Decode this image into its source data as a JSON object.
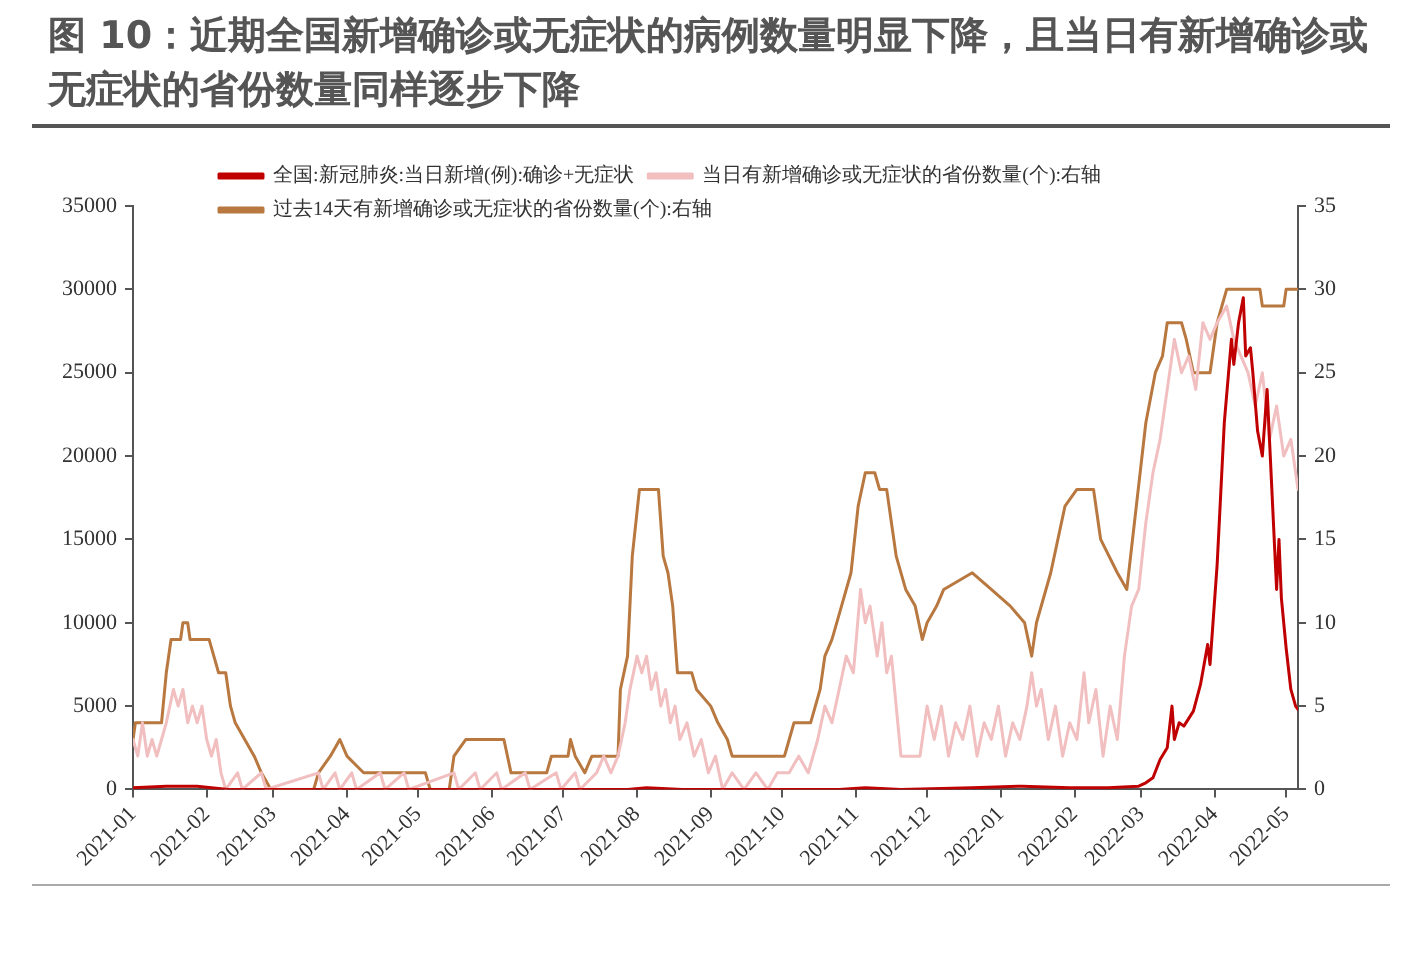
{
  "chart_data": {
    "type": "line",
    "title": "图 10：近期全国新增确诊或无症状的病例数量明显下降，且当日有新增确诊或无症状的省份数量同样逐步下降",
    "xlim": [
      "2021-01-01",
      "2022-05-06"
    ],
    "xticks": [
      "2021-01",
      "2021-02",
      "2021-03",
      "2021-04",
      "2021-05",
      "2021-06",
      "2021-07",
      "2021-08",
      "2021-09",
      "2021-10",
      "2021-11",
      "2021-12",
      "2022-01",
      "2022-02",
      "2022-03",
      "2022-04",
      "2022-05"
    ],
    "ylim": [
      0,
      35000
    ],
    "yticks": [
      0,
      5000,
      10000,
      15000,
      20000,
      25000,
      30000,
      35000
    ],
    "y2lim": [
      0,
      35
    ],
    "y2ticks": [
      0,
      5,
      10,
      15,
      20,
      25,
      30,
      35
    ],
    "grid": false,
    "legend": "top",
    "marker": "none",
    "series": [
      {
        "name": "全国:新冠肺炎:当日新增(例):确诊+无症状",
        "color": "#c00000",
        "x": [
          "2021-01-01",
          "2021-01-15",
          "2021-01-28",
          "2021-02-10",
          "2021-07-28",
          "2021-08-05",
          "2021-08-20",
          "2021-10-25",
          "2021-11-05",
          "2021-11-20",
          "2021-12-20",
          "2022-01-10",
          "2022-01-30",
          "2022-02-15",
          "2022-02-28",
          "2022-03-03",
          "2022-03-06",
          "2022-03-09",
          "2022-03-12",
          "2022-03-14",
          "2022-03-15",
          "2022-03-17",
          "2022-03-19",
          "2022-03-23",
          "2022-03-26",
          "2022-03-29",
          "2022-03-30",
          "2022-04-02",
          "2022-04-05",
          "2022-04-08",
          "2022-04-09",
          "2022-04-11",
          "2022-04-13",
          "2022-04-14",
          "2022-04-16",
          "2022-04-17",
          "2022-04-19",
          "2022-04-21",
          "2022-04-23",
          "2022-04-25",
          "2022-04-27",
          "2022-04-28",
          "2022-04-29",
          "2022-05-01",
          "2022-05-03",
          "2022-05-05",
          "2022-05-06"
        ],
        "values": [
          100,
          200,
          200,
          0,
          0,
          100,
          0,
          0,
          100,
          0,
          100,
          200,
          100,
          100,
          200,
          400,
          700,
          1800,
          2500,
          5000,
          3000,
          4000,
          3800,
          4700,
          6300,
          8700,
          7500,
          13500,
          22000,
          27000,
          25500,
          28000,
          29500,
          26000,
          26500,
          25000,
          21500,
          20000,
          24000,
          18000,
          12000,
          15000,
          11500,
          8500,
          6000,
          5000,
          4800
        ]
      },
      {
        "name": "当日有新增确诊或无症状的省份数量(个):右轴",
        "color": "#f2bfc0",
        "axis": "y2",
        "x": [
          "2021-01-01",
          "2021-01-03",
          "2021-01-05",
          "2021-01-07",
          "2021-01-09",
          "2021-01-11",
          "2021-01-13",
          "2021-01-15",
          "2021-01-18",
          "2021-01-20",
          "2021-01-22",
          "2021-01-24",
          "2021-01-26",
          "2021-01-28",
          "2021-01-30",
          "2021-02-01",
          "2021-02-03",
          "2021-02-05",
          "2021-02-07",
          "2021-02-09",
          "2021-02-14",
          "2021-02-16",
          "2021-02-24",
          "2021-02-26",
          "2021-03-20",
          "2021-03-22",
          "2021-03-27",
          "2021-03-29",
          "2021-04-03",
          "2021-04-05",
          "2021-04-15",
          "2021-04-17",
          "2021-04-25",
          "2021-04-27",
          "2021-05-16",
          "2021-05-18",
          "2021-05-25",
          "2021-05-27",
          "2021-06-03",
          "2021-06-05",
          "2021-06-15",
          "2021-06-17",
          "2021-06-28",
          "2021-06-30",
          "2021-07-06",
          "2021-07-08",
          "2021-07-15",
          "2021-07-18",
          "2021-07-21",
          "2021-07-24",
          "2021-07-27",
          "2021-07-29",
          "2021-08-01",
          "2021-08-03",
          "2021-08-05",
          "2021-08-07",
          "2021-08-09",
          "2021-08-11",
          "2021-08-13",
          "2021-08-15",
          "2021-08-17",
          "2021-08-19",
          "2021-08-22",
          "2021-08-25",
          "2021-08-28",
          "2021-08-31",
          "2021-09-03",
          "2021-09-06",
          "2021-09-10",
          "2021-09-15",
          "2021-09-20",
          "2021-09-25",
          "2021-09-29",
          "2021-10-04",
          "2021-10-08",
          "2021-10-12",
          "2021-10-16",
          "2021-10-19",
          "2021-10-22",
          "2021-10-25",
          "2021-10-28",
          "2021-10-31",
          "2021-11-03",
          "2021-11-05",
          "2021-11-07",
          "2021-11-10",
          "2021-11-12",
          "2021-11-14",
          "2021-11-16",
          "2021-11-18",
          "2021-11-20",
          "2021-11-24",
          "2021-11-28",
          "2021-12-01",
          "2021-12-04",
          "2021-12-07",
          "2021-12-10",
          "2021-12-13",
          "2021-12-16",
          "2021-12-19",
          "2021-12-22",
          "2021-12-25",
          "2021-12-28",
          "2021-12-31",
          "2022-01-03",
          "2022-01-06",
          "2022-01-09",
          "2022-01-12",
          "2022-01-14",
          "2022-01-16",
          "2022-01-18",
          "2022-01-21",
          "2022-01-24",
          "2022-01-27",
          "2022-01-30",
          "2022-02-02",
          "2022-02-05",
          "2022-02-07",
          "2022-02-10",
          "2022-02-13",
          "2022-02-16",
          "2022-02-19",
          "2022-02-22",
          "2022-02-25",
          "2022-02-28",
          "2022-03-03",
          "2022-03-06",
          "2022-03-09",
          "2022-03-12",
          "2022-03-15",
          "2022-03-18",
          "2022-03-21",
          "2022-03-24",
          "2022-03-27",
          "2022-03-30",
          "2022-04-02",
          "2022-04-06",
          "2022-04-09",
          "2022-04-12",
          "2022-04-15",
          "2022-04-18",
          "2022-04-21",
          "2022-04-24",
          "2022-04-27",
          "2022-04-30",
          "2022-05-03",
          "2022-05-06"
        ],
        "values": [
          3,
          2,
          4,
          2,
          3,
          2,
          3,
          4,
          6,
          5,
          6,
          4,
          5,
          4,
          5,
          3,
          2,
          3,
          1,
          0,
          1,
          0,
          1,
          0,
          1,
          0,
          1,
          0,
          1,
          0,
          1,
          0,
          1,
          0,
          1,
          0,
          1,
          0,
          1,
          0,
          1,
          0,
          1,
          0,
          1,
          0,
          1,
          2,
          1,
          2,
          4,
          6,
          8,
          7,
          8,
          6,
          7,
          5,
          6,
          4,
          5,
          3,
          4,
          2,
          3,
          1,
          2,
          0,
          1,
          0,
          1,
          0,
          1,
          1,
          2,
          1,
          3,
          5,
          4,
          6,
          8,
          7,
          12,
          10,
          11,
          8,
          10,
          7,
          8,
          5,
          2,
          2,
          2,
          5,
          3,
          5,
          2,
          4,
          3,
          5,
          2,
          4,
          3,
          5,
          2,
          4,
          3,
          5,
          7,
          5,
          6,
          3,
          5,
          2,
          4,
          3,
          7,
          4,
          6,
          2,
          5,
          3,
          8,
          11,
          12,
          16,
          19,
          21,
          24,
          27,
          25,
          26,
          24,
          28,
          27,
          28,
          29,
          27,
          26,
          25,
          23,
          25,
          21,
          23,
          20,
          21,
          18
        ]
      },
      {
        "name": "过去14天有新增确诊或无症状的省份数量(个):右轴",
        "color": "#b8783f",
        "axis": "y2",
        "x": [
          "2021-01-01",
          "2021-01-02",
          "2021-01-13",
          "2021-01-15",
          "2021-01-17",
          "2021-01-21",
          "2021-01-22",
          "2021-01-24",
          "2021-01-25",
          "2021-02-02",
          "2021-02-04",
          "2021-02-06",
          "2021-02-09",
          "2021-02-11",
          "2021-02-13",
          "2021-02-17",
          "2021-02-21",
          "2021-02-24",
          "2021-02-28",
          "2021-03-18",
          "2021-03-20",
          "2021-03-25",
          "2021-03-29",
          "2021-04-01",
          "2021-04-08",
          "2021-05-04",
          "2021-05-06",
          "2021-05-14",
          "2021-05-16",
          "2021-05-21",
          "2021-06-06",
          "2021-06-09",
          "2021-06-24",
          "2021-06-26",
          "2021-07-03",
          "2021-07-04",
          "2021-07-06",
          "2021-07-10",
          "2021-07-13",
          "2021-07-24",
          "2021-07-25",
          "2021-07-28",
          "2021-07-30",
          "2021-08-02",
          "2021-08-10",
          "2021-08-12",
          "2021-08-14",
          "2021-08-16",
          "2021-08-18",
          "2021-08-24",
          "2021-08-26",
          "2021-09-01",
          "2021-09-04",
          "2021-09-08",
          "2021-09-10",
          "2021-10-02",
          "2021-10-04",
          "2021-10-06",
          "2021-10-13",
          "2021-10-15",
          "2021-10-17",
          "2021-10-19",
          "2021-10-22",
          "2021-10-26",
          "2021-10-30",
          "2021-11-02",
          "2021-11-05",
          "2021-11-09",
          "2021-11-11",
          "2021-11-14",
          "2021-11-16",
          "2021-11-18",
          "2021-11-22",
          "2021-11-26",
          "2021-11-29",
          "2021-12-01",
          "2021-12-05",
          "2021-12-08",
          "2021-12-20",
          "2021-12-28",
          "2022-01-05",
          "2022-01-11",
          "2022-01-14",
          "2022-01-16",
          "2022-01-22",
          "2022-01-28",
          "2022-02-02",
          "2022-02-09",
          "2022-02-12",
          "2022-02-19",
          "2022-02-23",
          "2022-02-27",
          "2022-03-03",
          "2022-03-07",
          "2022-03-10",
          "2022-03-12",
          "2022-03-18",
          "2022-03-20",
          "2022-03-23",
          "2022-03-30",
          "2022-04-02",
          "2022-04-04",
          "2022-04-06",
          "2022-04-20",
          "2022-04-21",
          "2022-04-30",
          "2022-05-01",
          "2022-05-06"
        ],
        "values": [
          3,
          4,
          4,
          7,
          9,
          9,
          10,
          10,
          9,
          9,
          8,
          7,
          7,
          5,
          4,
          3,
          2,
          1,
          0,
          0,
          1,
          2,
          3,
          2,
          1,
          1,
          0,
          0,
          2,
          3,
          3,
          1,
          1,
          2,
          2,
          3,
          2,
          1,
          2,
          2,
          6,
          8,
          14,
          18,
          18,
          14,
          13,
          11,
          7,
          7,
          6,
          5,
          4,
          3,
          2,
          2,
          3,
          4,
          4,
          5,
          6,
          8,
          9,
          11,
          13,
          17,
          19,
          19,
          18,
          18,
          16,
          14,
          12,
          11,
          9,
          10,
          11,
          12,
          13,
          12,
          11,
          10,
          8,
          10,
          13,
          17,
          18,
          18,
          15,
          13,
          12,
          17,
          22,
          25,
          26,
          28,
          28,
          27,
          25,
          25,
          28,
          29,
          30,
          30,
          29,
          29,
          30,
          30
        ]
      }
    ]
  }
}
